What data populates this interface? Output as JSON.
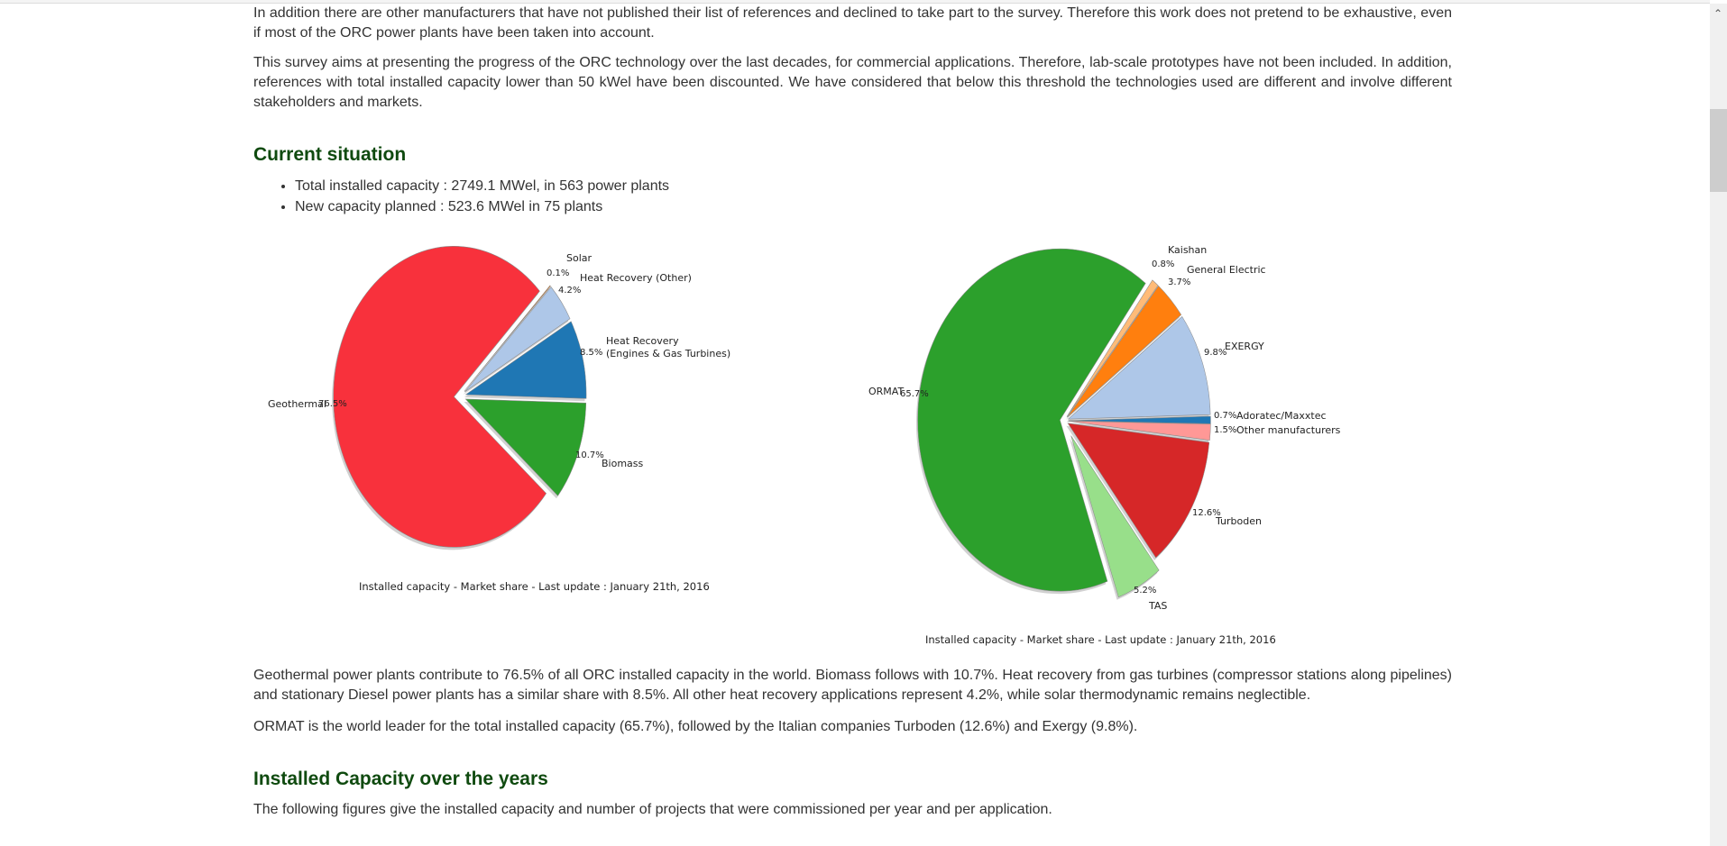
{
  "intro": {
    "p1": "In addition there are other manufacturers that have not published their list of references and declined to take part to the survey. Therefore this work does not pretend to be exhaustive, even if most of the ORC power plants have been taken into account.",
    "p2": "This survey aims at presenting the progress of the ORC technology over the last decades, for commercial applications. Therefore, lab-scale prototypes have not been included. In addition, references with total installed capacity lower than 50 kWel have been discounted. We have considered that below this threshold the technologies used are different and involve different stakeholders and markets."
  },
  "current": {
    "heading": "Current situation",
    "bullets": [
      "Total installed capacity : 2749.1 MWel, in 563 power plants",
      "New capacity planned : 523.6 MWel in 75 plants"
    ],
    "p1": "Geothermal power plants contribute to 76.5% of all ORC installed capacity in the world. Biomass follows with 10.7%. Heat recovery from gas turbines (compressor stations along pipelines) and stationary Diesel power plants has a similar share with 8.5%. All other heat recovery applications represent 4.2%, while solar thermodynamic remains neglectible.",
    "p2": "ORMAT is the world leader for the total installed capacity (65.7%), followed by the Italian companies Turboden (12.6%) and Exergy (9.8%)."
  },
  "years": {
    "heading": "Installed Capacity over the years",
    "p1": "The following figures give the installed capacity and number of projects that were commissioned per year and per application."
  },
  "chart_data": [
    {
      "type": "pie",
      "title": "Installed capacity - Market share - Last update : January 21th, 2016",
      "slices": [
        {
          "label": "Biomass",
          "value": 10.7,
          "color": "#2ca02c"
        },
        {
          "label": "Heat Recovery\n(Engines & Gas Turbines)",
          "value": 8.5,
          "color": "#1f77b4"
        },
        {
          "label": "Heat Recovery (Other)",
          "value": 4.2,
          "color": "#aec7e8"
        },
        {
          "label": "Solar",
          "value": 0.1,
          "color": "#ff7f0e"
        },
        {
          "label": "Geothermal",
          "value": 76.5,
          "color": "#f8313c"
        }
      ]
    },
    {
      "type": "pie",
      "title": "Installed capacity - Market share - Last update : January 21th, 2016",
      "slices": [
        {
          "label": "TAS",
          "value": 5.2,
          "color": "#98df8a"
        },
        {
          "label": "Turboden",
          "value": 12.6,
          "color": "#d62728"
        },
        {
          "label": "Other manufacturers",
          "value": 1.5,
          "color": "#ff9896"
        },
        {
          "label": "Adoratec/Maxxtec",
          "value": 0.7,
          "color": "#1f77b4"
        },
        {
          "label": "EXERGY",
          "value": 9.8,
          "color": "#aec7e8"
        },
        {
          "label": "General Electric",
          "value": 3.7,
          "color": "#ff7f0e"
        },
        {
          "label": "Kaishan",
          "value": 0.8,
          "color": "#ffbb78"
        },
        {
          "label": "ORMAT",
          "value": 65.7,
          "color": "#2ca02c"
        }
      ]
    }
  ]
}
